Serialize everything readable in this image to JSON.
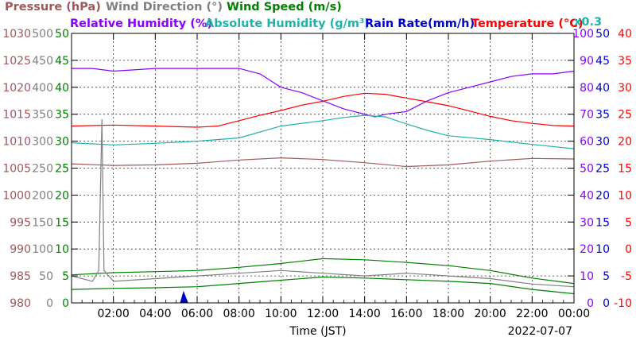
{
  "chart_data": {
    "type": "line",
    "date": "2022-07-07",
    "xlabel": "Time (JST)",
    "x_ticks": [
      "02:00",
      "04:00",
      "06:00",
      "08:00",
      "10:00",
      "12:00",
      "14:00",
      "16:00",
      "18:00",
      "20:00",
      "22:00",
      "00:00"
    ],
    "grid": true,
    "legend": {
      "row1": [
        {
          "text": "Pressure (hPa)",
          "color": "#a0585a"
        },
        {
          "text": "Wind Direction (°)",
          "color": "#808080"
        },
        {
          "text": "Wind Speed (m/s)",
          "color": "#008000"
        }
      ],
      "row2": [
        {
          "text": "Relative Humidity (%)",
          "color": "#8b00ff"
        },
        {
          "text": "Absolute Humidity (g/m³)",
          "color": "#20b2aa"
        },
        {
          "text": "Rain Rate(mm/h)",
          "color": "#0000cd"
        },
        {
          "text": "Temperature (°C)",
          "color": "#ff0000"
        }
      ],
      "abs_humidity_scale": "x0.3"
    },
    "axes": {
      "pressure": {
        "color": "#a0585a",
        "ticks": [
          "1030",
          "1025",
          "1020",
          "1015",
          "1010",
          "1005",
          "1000",
          "995",
          "990",
          "985",
          "980"
        ],
        "range": [
          980,
          1030
        ]
      },
      "wind_direction": {
        "color": "#808080",
        "ticks": [
          "500",
          "450",
          "400",
          "350",
          "300",
          "250",
          "200",
          "150",
          "100",
          "50",
          "0"
        ],
        "range": [
          0,
          500
        ]
      },
      "wind_speed": {
        "color": "#008000",
        "ticks": [
          "50",
          "45",
          "40",
          "35",
          "30",
          "25",
          "20",
          "15",
          "10",
          "5",
          "0"
        ],
        "range": [
          0,
          50
        ]
      },
      "relative_humidity": {
        "color": "#8b00ff",
        "ticks": [
          "100",
          "90",
          "80",
          "70",
          "60",
          "50",
          "40",
          "30",
          "20",
          "10",
          "0"
        ],
        "range": [
          0,
          100
        ]
      },
      "rain_rate": {
        "color": "#0000cd",
        "ticks": [
          "50",
          "45",
          "40",
          "35",
          "30",
          "25",
          "20",
          "15",
          "10",
          "5",
          "0"
        ],
        "range": [
          0,
          50
        ]
      },
      "temperature": {
        "color": "#ff0000",
        "ticks": [
          "40",
          "35",
          "30",
          "25",
          "20",
          "15",
          "10",
          "5",
          "0",
          "-5",
          "-10"
        ],
        "range": [
          -10,
          40
        ]
      }
    },
    "series": [
      {
        "name": "Pressure (hPa)",
        "axis": "pressure",
        "color": "#a0585a",
        "x": [
          0,
          2,
          4,
          6,
          8,
          10,
          12,
          14,
          16,
          18,
          20,
          22,
          24
        ],
        "y": [
          1005.8,
          1005.5,
          1005.6,
          1005.9,
          1006.5,
          1006.9,
          1006.6,
          1006.0,
          1005.3,
          1005.6,
          1006.3,
          1006.8,
          1006.7
        ]
      },
      {
        "name": "Relative Humidity (%)",
        "axis": "relative_humidity",
        "color": "#8b00ff",
        "x": [
          0,
          1,
          2,
          4,
          6,
          8,
          9,
          10,
          11,
          12,
          13,
          14,
          14.5,
          15,
          16,
          17,
          18,
          19,
          20,
          21,
          22,
          23,
          24
        ],
        "y": [
          87,
          87,
          86,
          87,
          87,
          87,
          85,
          80,
          78,
          75,
          72,
          70,
          69,
          70,
          71,
          75,
          78,
          80,
          82,
          84,
          85,
          85,
          86
        ]
      },
      {
        "name": "Absolute Humidity (g/m³)",
        "axis": "temperature",
        "color": "#20b2aa",
        "x": [
          0,
          2,
          4,
          6,
          8,
          10,
          12,
          13,
          14,
          15,
          16,
          17,
          18,
          20,
          22,
          24
        ],
        "y": [
          19.7,
          19.3,
          19.6,
          20.0,
          20.6,
          22.8,
          23.8,
          24.4,
          24.8,
          24.5,
          23.2,
          22.0,
          21.0,
          20.3,
          19.4,
          18.6
        ]
      },
      {
        "name": "Temperature (°C)",
        "axis": "temperature",
        "color": "#ff0000",
        "x": [
          0,
          2,
          4,
          6,
          7,
          8,
          9,
          10,
          11,
          12,
          13,
          14,
          15,
          16,
          17,
          18,
          19,
          20,
          21,
          22,
          23,
          24
        ],
        "y": [
          22.8,
          23.0,
          22.8,
          22.6,
          22.8,
          23.8,
          24.8,
          25.7,
          26.7,
          27.4,
          28.3,
          28.9,
          28.7,
          28.0,
          27.3,
          26.6,
          25.6,
          24.6,
          23.8,
          23.3,
          22.9,
          22.8
        ]
      },
      {
        "name": "Wind Speed (m/s)",
        "axis": "wind_speed",
        "color": "#008000",
        "x": [
          0,
          2,
          4,
          6,
          8,
          10,
          12,
          14,
          16,
          18,
          20,
          22,
          24
        ],
        "y": [
          2.5,
          2.7,
          2.8,
          3.0,
          3.6,
          4.2,
          4.8,
          4.6,
          4.3,
          4.0,
          3.6,
          2.5,
          1.7
        ]
      },
      {
        "name": "Wind Speed gust (m/s)",
        "axis": "wind_speed",
        "color": "#008000",
        "x": [
          0,
          2,
          4,
          6,
          8,
          10,
          12,
          14,
          16,
          18,
          20,
          22,
          24
        ],
        "y": [
          5.2,
          5.6,
          5.8,
          6.0,
          6.6,
          7.3,
          8.2,
          8.0,
          7.5,
          6.9,
          6.0,
          4.6,
          3.6
        ]
      },
      {
        "name": "Wind Direction (°)",
        "axis": "wind_direction",
        "color": "#808080",
        "x": [
          0,
          1,
          1.3,
          1.45,
          1.55,
          2,
          4,
          6,
          8,
          10,
          12,
          14,
          16,
          18,
          20,
          22,
          24
        ],
        "y": [
          50,
          40,
          60,
          340,
          60,
          40,
          45,
          50,
          55,
          60,
          55,
          50,
          55,
          50,
          45,
          35,
          30
        ]
      },
      {
        "name": "Rain Rate(mm/h)",
        "axis": "rain_rate",
        "color": "#0000cd",
        "x": [
          5.2,
          5.35,
          5.45,
          5.55
        ],
        "y": [
          0,
          2,
          1,
          0
        ]
      }
    ]
  }
}
